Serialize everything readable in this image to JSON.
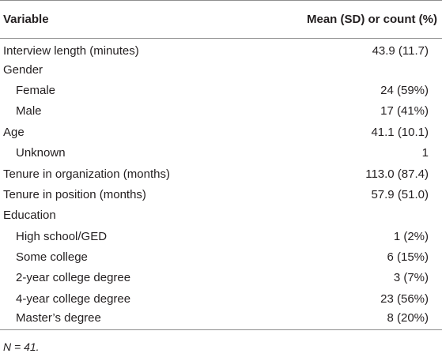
{
  "table": {
    "headers": {
      "variable": "Variable",
      "value": "Mean (SD) or count (%)"
    },
    "rows": [
      {
        "label": "Interview length (minutes)",
        "value": "43.9 (11.7)",
        "indent": false
      },
      {
        "label": "Gender",
        "value": "",
        "indent": false
      },
      {
        "label": "Female",
        "value": "24 (59%)",
        "indent": true
      },
      {
        "label": "Male",
        "value": "17 (41%)",
        "indent": true
      },
      {
        "label": "Age",
        "value": "41.1 (10.1)",
        "indent": false
      },
      {
        "label": "Unknown",
        "value": "1",
        "indent": true
      },
      {
        "label": "Tenure in organization (months)",
        "value": "113.0 (87.4)",
        "indent": false
      },
      {
        "label": "Tenure in position (months)",
        "value": "57.9 (51.0)",
        "indent": false
      },
      {
        "label": "Education",
        "value": "",
        "indent": false
      },
      {
        "label": "High school/GED",
        "value": "1 (2%)",
        "indent": true
      },
      {
        "label": "Some college",
        "value": "6 (15%)",
        "indent": true
      },
      {
        "label": "2-year college degree",
        "value": "3 (7%)",
        "indent": true
      },
      {
        "label": "4-year college degree",
        "value": "23 (56%)",
        "indent": true
      },
      {
        "label": "Master’s degree",
        "value": "8 (20%)",
        "indent": true
      }
    ]
  },
  "footnote": "N = 41."
}
